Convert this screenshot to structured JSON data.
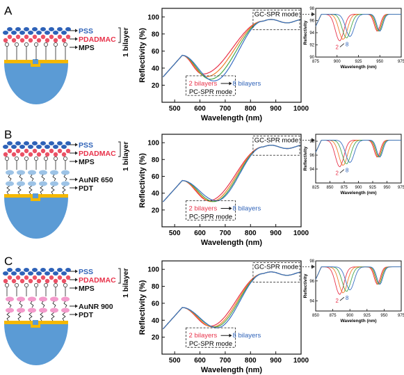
{
  "panels": [
    {
      "label": "A",
      "schematic": {
        "pss": "PSS",
        "pdadmac": "PDADMAC",
        "mps": "MPS",
        "bilayer": "1 bilayer",
        "extra": []
      },
      "main_chart": {
        "type": "line",
        "xlabel": "Wavelength (nm)",
        "ylabel": "Reflectivity (%)",
        "xlim": [
          450,
          1000
        ],
        "ylim": [
          0,
          110
        ],
        "xticks": [
          "500",
          "600",
          "700",
          "800",
          "900",
          "1000"
        ],
        "yticks": [
          "20",
          "40",
          "60",
          "80",
          "100"
        ],
        "box_gc_label": "GC-SPR mode",
        "box_pc_label": "PC-SPR mode",
        "box_pc_from": "2 bilayers",
        "box_pc_to": "8 bilayers",
        "series_colors": [
          "#e8324a",
          "#f07d2a",
          "#48a84a",
          "#3a6fc4"
        ],
        "curve_minimum": {
          "x": [
            610,
            625,
            640,
            655
          ],
          "y": [
            33,
            30,
            27,
            25
          ]
        }
      },
      "inset": {
        "xlim": [
          875,
          975
        ],
        "ylim": [
          90,
          98
        ],
        "xticks": [
          "875",
          "900",
          "925",
          "950",
          "975"
        ],
        "yticks": [
          "90",
          "92",
          "94",
          "96",
          "98"
        ],
        "xlabel": "Wavelength (nm)",
        "ylabel": "Reflectivity",
        "arrow_from": "2",
        "arrow_to": "8"
      }
    },
    {
      "label": "B",
      "schematic": {
        "pss": "PSS",
        "pdadmac": "PDADMAC",
        "mps": "MPS",
        "bilayer": "1 bilayer",
        "extra": [
          "AuNR 650",
          "PDT"
        ]
      },
      "main_chart": {
        "type": "line",
        "xlabel": "Wavelength (nm)",
        "ylabel": "Reflectivity (%)",
        "xlim": [
          450,
          1000
        ],
        "ylim": [
          0,
          110
        ],
        "xticks": [
          "500",
          "600",
          "700",
          "800",
          "900",
          "1000"
        ],
        "yticks": [
          "20",
          "40",
          "60",
          "80",
          "100"
        ],
        "box_gc_label": "GC-SPR mode",
        "box_pc_label": "PC-SPR mode",
        "box_pc_from": "2 bilayers",
        "box_pc_to": "8 bilayers",
        "series_colors": [
          "#e8324a",
          "#f07d2a",
          "#48a84a",
          "#3a6fc4"
        ],
        "curve_minimum": {
          "x": [
            635,
            645,
            655,
            665
          ],
          "y": [
            31,
            30,
            30,
            31
          ]
        }
      },
      "inset": {
        "xlim": [
          825,
          975
        ],
        "ylim": [
          92,
          99
        ],
        "xticks": [
          "825",
          "850",
          "875",
          "900",
          "925",
          "950",
          "975"
        ],
        "yticks": [
          "94",
          "96",
          "98"
        ],
        "xlabel": "Wavelength (nm)",
        "ylabel": "Reflectivity",
        "arrow_from": "2",
        "arrow_to": "8"
      }
    },
    {
      "label": "C",
      "schematic": {
        "pss": "PSS",
        "pdadmac": "PDADMAC",
        "mps": "MPS",
        "bilayer": "1 bilayer",
        "extra": [
          "AuNR 900",
          "PDT"
        ]
      },
      "main_chart": {
        "type": "line",
        "xlabel": "Wavelength (nm)",
        "ylabel": "Reflectivity (%)",
        "xlim": [
          450,
          1000
        ],
        "ylim": [
          0,
          110
        ],
        "xticks": [
          "500",
          "600",
          "700",
          "800",
          "900",
          "1000"
        ],
        "yticks": [
          "20",
          "40",
          "60",
          "80",
          "100"
        ],
        "box_gc_label": "GC-SPR mode",
        "box_pc_label": "PC-SPR mode",
        "box_pc_from": "2 bilayers",
        "box_pc_to": "8 bilayers",
        "series_colors": [
          "#e8324a",
          "#f07d2a",
          "#48a84a",
          "#3a6fc4"
        ],
        "curve_minimum": {
          "x": [
            640,
            650,
            660,
            668
          ],
          "y": [
            33,
            32,
            32,
            31
          ]
        }
      },
      "inset": {
        "xlim": [
          850,
          975
        ],
        "ylim": [
          93,
          98
        ],
        "xticks": [
          "850",
          "875",
          "900",
          "925",
          "950",
          "975"
        ],
        "yticks": [
          "94",
          "96",
          "98"
        ],
        "xlabel": "Wavelength (nm)",
        "ylabel": "Reflectivity",
        "arrow_from": "2",
        "arrow_to": "8"
      }
    }
  ],
  "chart_data": [
    {
      "type": "line",
      "panel": "A",
      "xlabel": "Wavelength (nm)",
      "ylabel": "Reflectivity (%)",
      "xlim": [
        450,
        1000
      ],
      "ylim": [
        0,
        110
      ],
      "approx_minima": [
        {
          "x": 610,
          "y": 33
        },
        {
          "x": 625,
          "y": 30
        },
        {
          "x": 640,
          "y": 27
        },
        {
          "x": 655,
          "y": 25
        }
      ]
    },
    {
      "type": "line",
      "panel": "B",
      "xlabel": "Wavelength (nm)",
      "ylabel": "Reflectivity (%)",
      "xlim": [
        450,
        1000
      ],
      "ylim": [
        0,
        110
      ],
      "approx_minima": [
        {
          "x": 635,
          "y": 31
        },
        {
          "x": 645,
          "y": 30
        },
        {
          "x": 655,
          "y": 30
        },
        {
          "x": 665,
          "y": 31
        }
      ]
    },
    {
      "type": "line",
      "panel": "C",
      "xlabel": "Wavelength (nm)",
      "ylabel": "Reflectivity (%)",
      "xlim": [
        450,
        1000
      ],
      "ylim": [
        0,
        110
      ],
      "approx_minima": [
        {
          "x": 640,
          "y": 33
        },
        {
          "x": 650,
          "y": 32
        },
        {
          "x": 660,
          "y": 32
        },
        {
          "x": 668,
          "y": 31
        }
      ]
    }
  ]
}
